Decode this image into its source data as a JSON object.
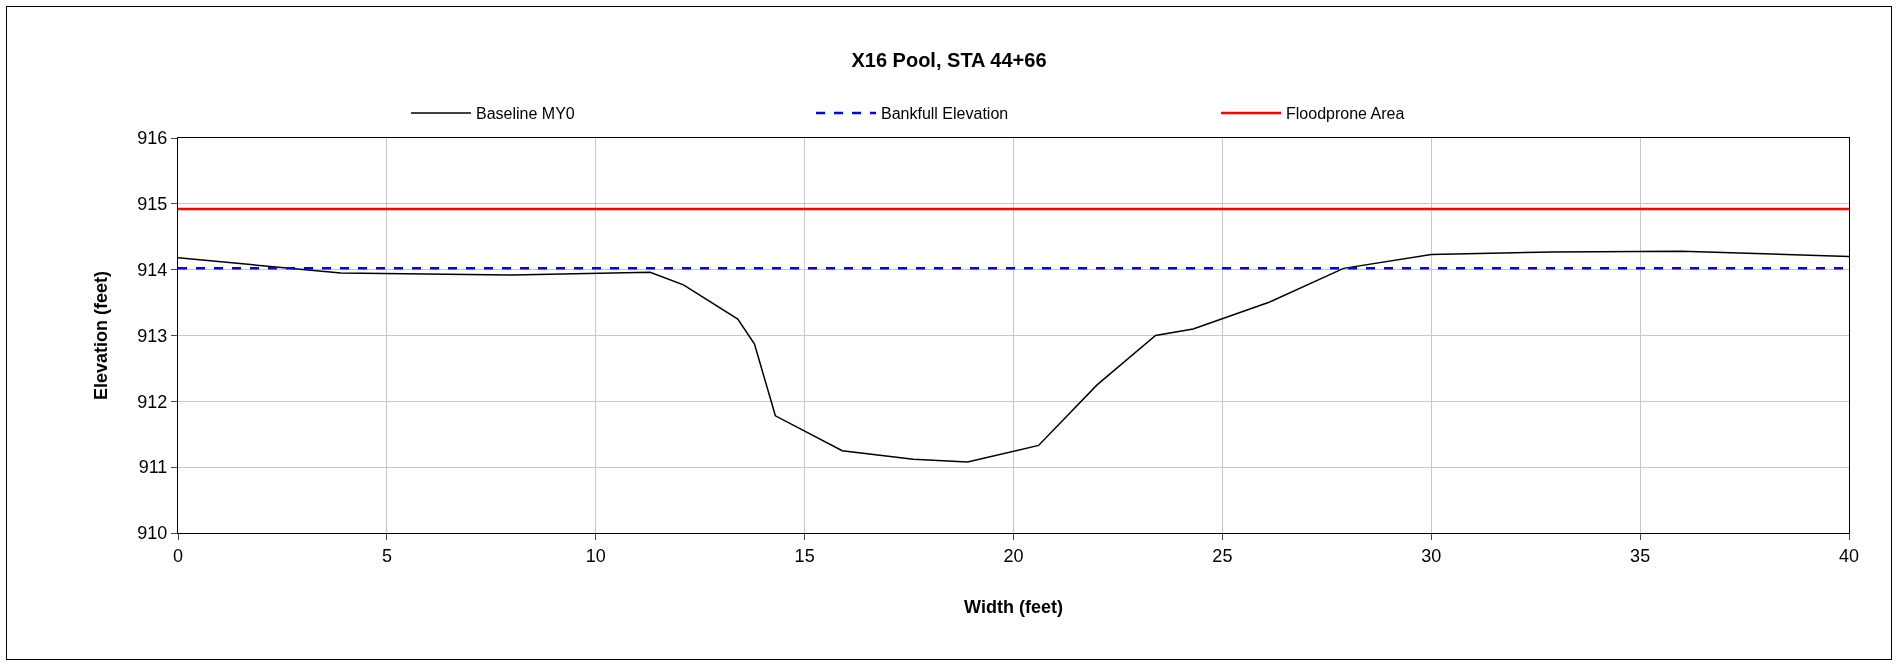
{
  "chart_data": {
    "type": "line",
    "title": "X16 Pool, STA 44+66",
    "xlabel": "Width (feet)",
    "ylabel": "Elevation (feet)",
    "series": [
      {
        "name": "Baseline MY0",
        "color": "#000000",
        "x": [
          0,
          3.9,
          8,
          11.3,
          12.1,
          13.4,
          13.8,
          14.3,
          15.9,
          17.6,
          18.9,
          20.6,
          22.0,
          23.4,
          24.3,
          26.1,
          27.9,
          30,
          32.9,
          36,
          40
        ],
        "values": [
          914.18,
          913.95,
          913.92,
          913.96,
          913.77,
          913.25,
          912.87,
          911.78,
          911.25,
          911.12,
          911.08,
          911.33,
          912.25,
          913.0,
          913.1,
          913.5,
          914.02,
          914.23,
          914.27,
          914.28,
          914.2
        ],
        "line_style": "solid"
      },
      {
        "name": "Bankfull Elevation",
        "color": "#0000ff",
        "x": [
          0,
          40
        ],
        "values": [
          914.02,
          914.02
        ],
        "line_style": "dashed"
      },
      {
        "name": "Floodprone Area",
        "color": "#ff0000",
        "x": [
          0,
          40
        ],
        "values": [
          914.92,
          914.92
        ],
        "line_style": "solid"
      }
    ],
    "xlim": [
      0,
      40
    ],
    "xticks": [
      0,
      5,
      10,
      15,
      20,
      25,
      30,
      35,
      40
    ],
    "ylim": [
      910,
      916
    ],
    "yticks": [
      910,
      911,
      912,
      913,
      914,
      915,
      916
    ],
    "grid": true,
    "legend": "top",
    "marker": "none"
  }
}
